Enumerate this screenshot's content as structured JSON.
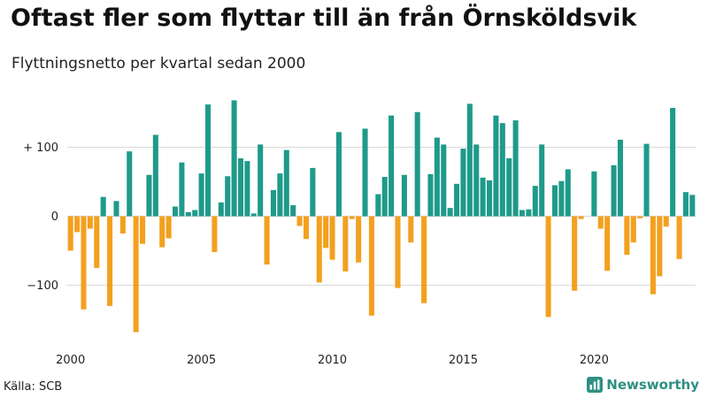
{
  "header": {
    "title": "Oftast fler som flyttar till än från Örnsköldsvik",
    "subtitle": "Flyttningsnetto per kvartal sedan 2000"
  },
  "footer": {
    "source": "Källa: SCB",
    "brand": "Newsworthy",
    "brand_icon": "bar-chart-logo-icon",
    "brand_color": "#2f8f83"
  },
  "colors": {
    "positive": "#1f9a8a",
    "negative": "#f3a01f",
    "grid": "#d9d9d9"
  },
  "chart_data": {
    "type": "bar",
    "title": "Oftast fler som flyttar till än från Örnsköldsvik",
    "subtitle": "Flyttningsnetto per kvartal sedan 2000",
    "xlabel": "",
    "ylabel": "",
    "ylim": [
      -180,
      180
    ],
    "yticks": [
      {
        "value": 100,
        "label": "+ 100"
      },
      {
        "value": 0,
        "label": "0"
      },
      {
        "value": -100,
        "label": "−100"
      }
    ],
    "xticks": [
      {
        "year": 2000,
        "label": "2000"
      },
      {
        "year": 2005,
        "label": "2005"
      },
      {
        "year": 2010,
        "label": "2010"
      },
      {
        "year": 2015,
        "label": "2015"
      },
      {
        "year": 2020,
        "label": "2020"
      }
    ],
    "grid": true,
    "start_year": 2000,
    "series": [
      {
        "name": "Flyttningsnetto",
        "values": [
          -50,
          -23,
          -135,
          -18,
          -75,
          28,
          -130,
          22,
          -25,
          94,
          -168,
          -40,
          60,
          118,
          -45,
          -32,
          14,
          78,
          6,
          9,
          62,
          162,
          -52,
          20,
          58,
          168,
          84,
          80,
          4,
          104,
          -70,
          38,
          62,
          96,
          16,
          -14,
          -33,
          70,
          -96,
          -46,
          -63,
          122,
          -80,
          -4,
          -67,
          127,
          -144,
          32,
          57,
          146,
          -104,
          60,
          -38,
          151,
          -126,
          61,
          114,
          104,
          12,
          47,
          98,
          163,
          104,
          56,
          52,
          146,
          135,
          84,
          139,
          9,
          10,
          44,
          104,
          -146,
          45,
          51,
          68,
          -108,
          -4,
          0,
          65,
          -18,
          -79,
          74,
          111,
          -56,
          -38,
          -3,
          105,
          -113,
          -87,
          -15,
          157,
          -62,
          35,
          31
        ]
      }
    ]
  }
}
